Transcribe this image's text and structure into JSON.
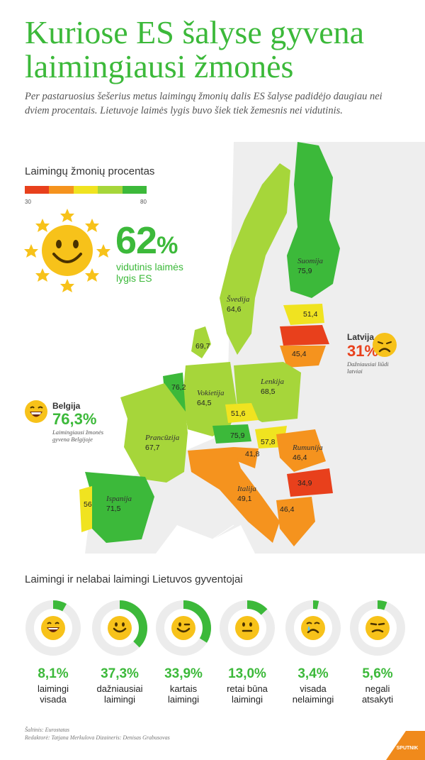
{
  "title": {
    "line1": "Kuriose ES šalyse gyvena",
    "line2": "laimingiausi žmonės"
  },
  "intro": "Per pastaruosius šešerius metus laimingų žmonių dalis ES šalyse padidėjo daugiau nei dviem procentais. Lietuvoje laimės lygis buvo šiek tiek žemesnis nei vidutinis.",
  "legend": {
    "title": "Laimingų žmonių procentas",
    "min": "30",
    "max": "80",
    "colors": [
      "#e8401c",
      "#f5931e",
      "#f0e320",
      "#a6d63a",
      "#3cb93a"
    ]
  },
  "average": {
    "value": "62",
    "unit": "%",
    "label": "vidutinis laimės lygis ES"
  },
  "countries": [
    {
      "name": "Suomija",
      "value": "75,9",
      "color": "#3cb93a"
    },
    {
      "name": "Švedija",
      "value": "64,6",
      "color": "#a6d63a"
    },
    {
      "name": "",
      "value": "69,7",
      "color": "#a6d63a"
    },
    {
      "name": "",
      "value": "51,4",
      "color": "#f0e320"
    },
    {
      "name": "",
      "value": "45,4",
      "color": "#f5931e"
    },
    {
      "name": "Lenkija",
      "value": "68,5",
      "color": "#a6d63a"
    },
    {
      "name": "Vokietija",
      "value": "64,5",
      "color": "#a6d63a"
    },
    {
      "name": "",
      "value": "76,2",
      "color": "#3cb93a"
    },
    {
      "name": "",
      "value": "51,6",
      "color": "#f0e320"
    },
    {
      "name": "",
      "value": "57,8",
      "color": "#f0e320"
    },
    {
      "name": "",
      "value": "75,9",
      "color": "#3cb93a"
    },
    {
      "name": "",
      "value": "41,8",
      "color": "#f5931e"
    },
    {
      "name": "Prancūzija",
      "value": "67,7",
      "color": "#a6d63a"
    },
    {
      "name": "Rumunija",
      "value": "46,4",
      "color": "#f5931e"
    },
    {
      "name": "",
      "value": "34,9",
      "color": "#e8401c"
    },
    {
      "name": "Italija",
      "value": "49,1",
      "color": "#f5931e"
    },
    {
      "name": "",
      "value": "46,4",
      "color": "#f5931e"
    },
    {
      "name": "Ispanija",
      "value": "71,5",
      "color": "#3cb93a"
    },
    {
      "name": "",
      "value": "56",
      "color": "#f0e320"
    }
  ],
  "callouts": {
    "latvia": {
      "name": "Latvija",
      "value": "31%",
      "note": "Dažniausiai liūdi latviai",
      "color": "#e8401c"
    },
    "belgium": {
      "name": "Belgija",
      "value": "76,3%",
      "note": "Laimingiausi žmonės gyvena Belgijoje",
      "color": "#3cb93a"
    }
  },
  "lithuania": {
    "title": "Laimingi ir nelabai laimingi Lietuvos gyventojai",
    "stats": [
      {
        "value": "8,1%",
        "fraction": 0.081,
        "label_line1": "laimingi",
        "label_line2": "visada",
        "icon": "laughing-face"
      },
      {
        "value": "37,3%",
        "fraction": 0.373,
        "label_line1": "dažniausiai",
        "label_line2": "laimingi",
        "icon": "smiling-face"
      },
      {
        "value": "33,9%",
        "fraction": 0.339,
        "label_line1": "kartais",
        "label_line2": "laimingi",
        "icon": "winking-face"
      },
      {
        "value": "13,0%",
        "fraction": 0.13,
        "label_line1": "retai būna",
        "label_line2": "laimingi",
        "icon": "neutral-face"
      },
      {
        "value": "3,4%",
        "fraction": 0.034,
        "label_line1": "visada",
        "label_line2": "nelaimingi",
        "icon": "crying-face"
      },
      {
        "value": "5,6%",
        "fraction": 0.056,
        "label_line1": "negali",
        "label_line2": "atsakyti",
        "icon": "unsure-face"
      }
    ]
  },
  "source": {
    "line1": "Šaltinis: Eurostatas",
    "line2": "Redaktorė: Tatjana Merkulova Dizaineris: Denisas Grabusovas"
  },
  "brand": "SPUTNIK"
}
